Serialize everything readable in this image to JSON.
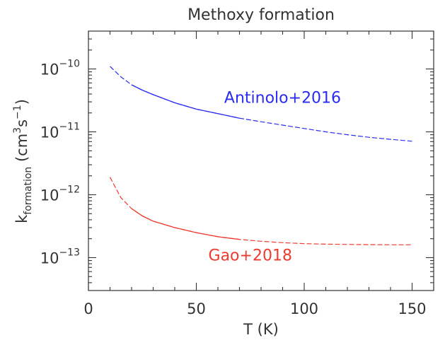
{
  "chart_data": {
    "type": "line",
    "title": "Methoxy formation",
    "xlabel": "T (K)",
    "ylabel": {
      "prefix": "k",
      "subscript": "formation",
      "units_open": " (cm",
      "units_sup1": "3",
      "units_mid": "s",
      "units_sup2": "−1",
      "units_close": ")"
    },
    "x_range": [
      0,
      160
    ],
    "y_range": [
      3e-14,
      4e-10
    ],
    "y_scale": "log",
    "x_ticks": [
      {
        "value": 0,
        "label": "0"
      },
      {
        "value": 50,
        "label": "50"
      },
      {
        "value": 100,
        "label": "100"
      },
      {
        "value": 150,
        "label": "150"
      }
    ],
    "y_ticks": [
      {
        "value": 1e-10,
        "base": "10",
        "exp": "−10"
      },
      {
        "value": 1e-11,
        "base": "10",
        "exp": "−11"
      },
      {
        "value": 1e-12,
        "base": "10",
        "exp": "−12"
      },
      {
        "value": 1e-13,
        "base": "10",
        "exp": "−13"
      }
    ],
    "grid": false,
    "series": [
      {
        "name": "Antinolo+2016",
        "color": "#2b2bf0",
        "label_at": [
          90,
          2.9e-11
        ],
        "x": [
          10,
          15,
          20,
          25,
          30,
          40,
          50,
          60,
          70,
          80,
          90,
          100,
          110,
          120,
          130,
          140,
          150
        ],
        "y": [
          1.1e-10,
          7.5e-11,
          5.6e-11,
          4.6e-11,
          3.9e-11,
          2.9e-11,
          2.3e-11,
          1.95e-11,
          1.65e-11,
          1.45e-11,
          1.28e-11,
          1.13e-11,
          1e-11,
          9e-12,
          8.2e-12,
          7.6e-12,
          7.1e-12
        ]
      },
      {
        "name": "Gao+2018",
        "color": "#ee3b30",
        "label_at": [
          75,
          9e-14
        ],
        "x": [
          10,
          15,
          20,
          25,
          30,
          40,
          50,
          60,
          70,
          80,
          90,
          100,
          110,
          120,
          130,
          140,
          150
        ],
        "y": [
          1.9e-12,
          9e-13,
          6e-13,
          4.6e-13,
          3.8e-13,
          3e-13,
          2.5e-13,
          2.15e-13,
          1.95e-13,
          1.82e-13,
          1.73e-13,
          1.67e-13,
          1.64e-13,
          1.62e-13,
          1.61e-13,
          1.6e-13,
          1.6e-13
        ]
      }
    ]
  }
}
